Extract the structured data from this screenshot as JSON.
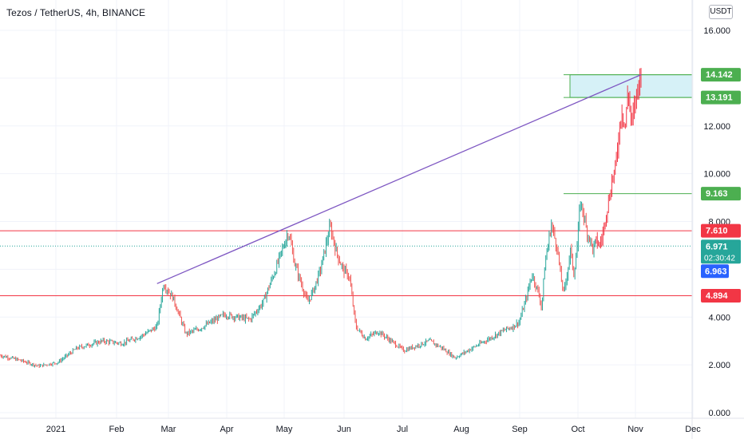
{
  "header": {
    "title": "Tezos / TetherUS, 4h, BINANCE",
    "currency": "USDT"
  },
  "chart_data": {
    "type": "candlestick",
    "symbol": "Tezos / TetherUS",
    "timeframe": "4h",
    "exchange": "BINANCE",
    "ylim": [
      0,
      17
    ],
    "y_ticks": [
      {
        "value": 0,
        "label": "0.000"
      },
      {
        "value": 2,
        "label": "2.000"
      },
      {
        "value": 4,
        "label": "4.000"
      },
      {
        "value": 8,
        "label": "8.000"
      },
      {
        "value": 10,
        "label": "10.000"
      },
      {
        "value": 12,
        "label": "12.000"
      },
      {
        "value": 16,
        "label": "16.000"
      }
    ],
    "x_ticks": [
      "2021",
      "Feb",
      "Mar",
      "Apr",
      "May",
      "Jun",
      "Jul",
      "Aug",
      "Sep",
      "Oct",
      "Nov",
      "Dec"
    ],
    "price_path": [
      [
        0.0,
        2.4
      ],
      [
        0.03,
        2.2
      ],
      [
        0.06,
        1.95
      ],
      [
        0.09,
        2.1
      ],
      [
        0.12,
        2.7
      ],
      [
        0.16,
        3.0
      ],
      [
        0.19,
        2.9
      ],
      [
        0.22,
        3.2
      ],
      [
        0.245,
        3.6
      ],
      [
        0.255,
        5.4
      ],
      [
        0.27,
        4.8
      ],
      [
        0.29,
        3.3
      ],
      [
        0.31,
        3.5
      ],
      [
        0.33,
        3.8
      ],
      [
        0.35,
        4.1
      ],
      [
        0.37,
        4.0
      ],
      [
        0.39,
        3.9
      ],
      [
        0.41,
        4.6
      ],
      [
        0.43,
        6.0
      ],
      [
        0.45,
        7.6
      ],
      [
        0.46,
        6.2
      ],
      [
        0.48,
        4.6
      ],
      [
        0.49,
        5.2
      ],
      [
        0.5,
        6.0
      ],
      [
        0.515,
        7.8
      ],
      [
        0.525,
        6.7
      ],
      [
        0.535,
        6.0
      ],
      [
        0.545,
        5.7
      ],
      [
        0.555,
        3.6
      ],
      [
        0.57,
        3.1
      ],
      [
        0.59,
        3.4
      ],
      [
        0.61,
        3.0
      ],
      [
        0.63,
        2.6
      ],
      [
        0.65,
        2.8
      ],
      [
        0.67,
        3.0
      ],
      [
        0.69,
        2.7
      ],
      [
        0.71,
        2.3
      ],
      [
        0.73,
        2.6
      ],
      [
        0.75,
        2.9
      ],
      [
        0.77,
        3.2
      ],
      [
        0.79,
        3.5
      ],
      [
        0.8,
        3.6
      ],
      [
        0.81,
        3.8
      ],
      [
        0.82,
        4.7
      ],
      [
        0.83,
        5.8
      ],
      [
        0.84,
        5.0
      ],
      [
        0.845,
        4.4
      ],
      [
        0.85,
        6.2
      ],
      [
        0.86,
        7.9
      ],
      [
        0.87,
        6.8
      ],
      [
        0.875,
        5.6
      ],
      [
        0.88,
        5.0
      ],
      [
        0.89,
        6.8
      ],
      [
        0.895,
        5.8
      ],
      [
        0.9,
        6.8
      ],
      [
        0.905,
        8.8
      ],
      [
        0.91,
        8.4
      ],
      [
        0.915,
        7.6
      ],
      [
        0.92,
        7.3
      ],
      [
        0.925,
        6.8
      ],
      [
        0.93,
        7.2
      ]
    ],
    "price_path_red": [
      [
        0.93,
        7.2
      ],
      [
        0.935,
        7.0
      ],
      [
        0.94,
        7.4
      ],
      [
        0.945,
        8.3
      ],
      [
        0.95,
        8.9
      ],
      [
        0.955,
        9.8
      ],
      [
        0.96,
        10.2
      ],
      [
        0.965,
        11.6
      ],
      [
        0.97,
        12.8
      ],
      [
        0.975,
        11.8
      ],
      [
        0.98,
        13.6
      ],
      [
        0.985,
        12.0
      ],
      [
        0.99,
        12.8
      ],
      [
        0.995,
        13.7
      ],
      [
        1.0,
        14.142
      ]
    ],
    "horizontal_levels": [
      {
        "value": 14.142,
        "label": "14.142",
        "color": "#4caf50"
      },
      {
        "value": 13.191,
        "label": "13.191",
        "color": "#4caf50"
      },
      {
        "value": 9.163,
        "label": "9.163",
        "color": "#4caf50"
      },
      {
        "value": 7.61,
        "label": "7.610",
        "color": "#f23645"
      },
      {
        "value": 4.894,
        "label": "4.894",
        "color": "#f23645"
      }
    ],
    "current_price": {
      "value": 6.971,
      "label": "6.971",
      "countdown": "02:30:42",
      "color": "#26a69a"
    },
    "last_close": {
      "value": 6.963,
      "label": "6.963",
      "color": "#2962ff"
    },
    "trendline": {
      "color": "#7e57c2",
      "from": [
        0.245,
        5.4
      ],
      "to": [
        1.0,
        14.142
      ]
    },
    "zone": {
      "low": 13.191,
      "high": 14.142,
      "fill": "#d6f1f7",
      "border": "#4caf50"
    }
  }
}
